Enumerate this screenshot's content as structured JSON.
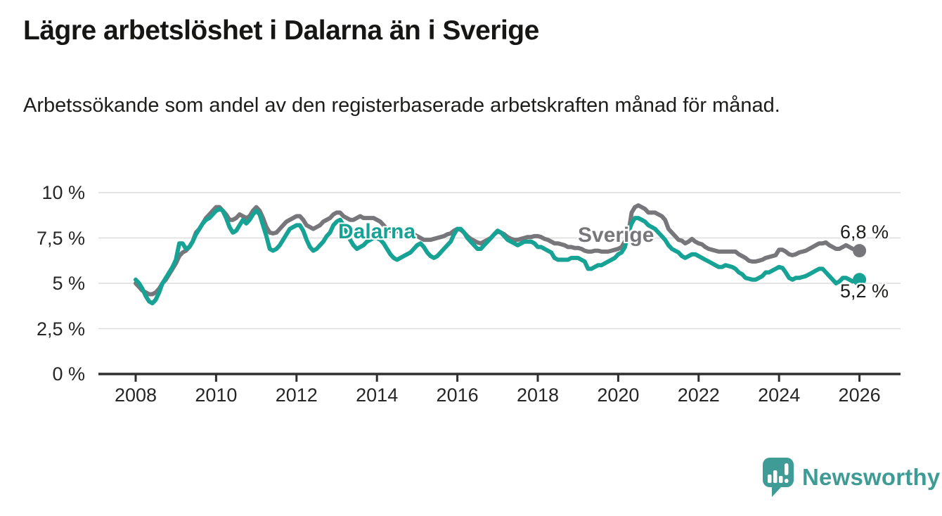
{
  "header": {
    "title": "Lägre arbetslöshet i Dalarna än i Sverige",
    "subtitle": "Arbetssökande som andel av den registerbaserade arbetskraften månad för månad."
  },
  "branding": {
    "logo_text": "Newsworthy",
    "logo_color": "#3f9b95"
  },
  "chart_data": {
    "type": "line",
    "unit": "percent",
    "frequency": "monthly",
    "x_start": "2008-01",
    "x_end": "2026-01",
    "grid": "horizontal",
    "legend": "inline-labels",
    "ylim": [
      0,
      10.5
    ],
    "x_ticks": [
      "2008",
      "2010",
      "2012",
      "2014",
      "2016",
      "2018",
      "2020",
      "2022",
      "2024",
      "2026"
    ],
    "y_ticks": [
      {
        "value": 0,
        "label": "0 %"
      },
      {
        "value": 2.5,
        "label": "2,5 %"
      },
      {
        "value": 5,
        "label": "5 %"
      },
      {
        "value": 7.5,
        "label": "7,5 %"
      },
      {
        "value": 10,
        "label": "10 %"
      }
    ],
    "series": [
      {
        "name": "Sverige",
        "color": "#77777b",
        "end_value": 6.8,
        "end_label": "6,8 %",
        "values": [
          5.0,
          4.8,
          4.6,
          4.5,
          4.4,
          4.4,
          4.5,
          4.7,
          5.0,
          5.2,
          5.5,
          5.8,
          6.1,
          6.5,
          6.7,
          6.8,
          7.0,
          7.3,
          7.8,
          8.0,
          8.3,
          8.6,
          8.8,
          9.0,
          9.2,
          9.2,
          9.0,
          8.8,
          8.5,
          8.5,
          8.6,
          8.8,
          8.7,
          8.6,
          8.7,
          9.0,
          9.2,
          9.0,
          8.6,
          8.1,
          7.8,
          7.75,
          7.8,
          8.0,
          8.2,
          8.4,
          8.5,
          8.6,
          8.7,
          8.7,
          8.5,
          8.2,
          8.1,
          8.0,
          8.1,
          8.2,
          8.4,
          8.5,
          8.6,
          8.8,
          8.9,
          8.9,
          8.7,
          8.6,
          8.5,
          8.5,
          8.6,
          8.7,
          8.6,
          8.6,
          8.6,
          8.6,
          8.5,
          8.4,
          8.2,
          8.0,
          7.9,
          7.9,
          7.9,
          7.8,
          7.7,
          7.6,
          7.6,
          7.7,
          7.6,
          7.5,
          7.4,
          7.4,
          7.4,
          7.45,
          7.5,
          7.55,
          7.6,
          7.7,
          7.75,
          7.9,
          8.0,
          7.95,
          7.8,
          7.6,
          7.45,
          7.35,
          7.25,
          7.2,
          7.3,
          7.4,
          7.5,
          7.7,
          7.85,
          7.8,
          7.7,
          7.55,
          7.45,
          7.4,
          7.4,
          7.45,
          7.5,
          7.55,
          7.55,
          7.6,
          7.6,
          7.55,
          7.45,
          7.4,
          7.3,
          7.2,
          7.2,
          7.15,
          7.1,
          7.0,
          7.0,
          6.95,
          6.95,
          6.9,
          6.8,
          6.75,
          6.75,
          6.8,
          6.8,
          6.75,
          6.75,
          6.75,
          6.8,
          6.85,
          6.9,
          7.0,
          7.3,
          7.7,
          8.9,
          9.2,
          9.3,
          9.2,
          9.1,
          8.9,
          8.9,
          8.9,
          8.8,
          8.7,
          8.5,
          8.0,
          7.8,
          7.6,
          7.4,
          7.35,
          7.2,
          7.3,
          7.45,
          7.3,
          7.2,
          7.15,
          7.0,
          6.9,
          6.85,
          6.8,
          6.75,
          6.75,
          6.75,
          6.75,
          6.75,
          6.75,
          6.6,
          6.5,
          6.4,
          6.25,
          6.2,
          6.2,
          6.25,
          6.3,
          6.4,
          6.45,
          6.5,
          6.55,
          6.85,
          6.85,
          6.75,
          6.6,
          6.55,
          6.6,
          6.7,
          6.75,
          6.8,
          6.9,
          7.0,
          7.1,
          7.2,
          7.2,
          7.25,
          7.1,
          7.0,
          6.9,
          6.9,
          7.0,
          7.1,
          7.0,
          6.9,
          6.85,
          6.8
        ]
      },
      {
        "name": "Dalarna",
        "color": "#16a294",
        "end_value": 5.2,
        "end_label": "5,2 %",
        "values": [
          5.2,
          5.0,
          4.7,
          4.3,
          4.0,
          3.9,
          4.1,
          4.5,
          5.0,
          5.3,
          5.6,
          5.9,
          6.3,
          7.2,
          7.2,
          6.9,
          7.0,
          7.3,
          7.7,
          8.0,
          8.3,
          8.5,
          8.6,
          8.8,
          9.0,
          9.1,
          9.0,
          8.6,
          8.1,
          7.8,
          7.9,
          8.2,
          8.5,
          8.3,
          8.5,
          8.8,
          9.0,
          8.8,
          8.2,
          7.6,
          6.9,
          6.8,
          6.9,
          7.1,
          7.4,
          7.7,
          8.0,
          8.1,
          8.2,
          8.2,
          7.9,
          7.4,
          7.0,
          6.8,
          6.9,
          7.1,
          7.3,
          7.6,
          7.8,
          8.2,
          8.4,
          8.5,
          8.2,
          7.8,
          7.4,
          7.1,
          6.9,
          7.0,
          7.1,
          7.3,
          7.4,
          7.5,
          7.5,
          7.4,
          7.2,
          6.9,
          6.6,
          6.4,
          6.3,
          6.4,
          6.5,
          6.6,
          6.7,
          6.9,
          7.1,
          7.2,
          7.0,
          6.7,
          6.5,
          6.4,
          6.5,
          6.7,
          6.9,
          7.1,
          7.3,
          7.7,
          8.0,
          8.0,
          7.8,
          7.5,
          7.3,
          7.1,
          6.9,
          6.9,
          7.1,
          7.3,
          7.5,
          7.7,
          7.9,
          7.8,
          7.6,
          7.4,
          7.3,
          7.2,
          7.1,
          7.2,
          7.3,
          7.3,
          7.3,
          7.2,
          7.0,
          7.0,
          6.9,
          6.8,
          6.7,
          6.4,
          6.3,
          6.3,
          6.3,
          6.3,
          6.4,
          6.4,
          6.4,
          6.3,
          6.2,
          5.8,
          5.8,
          5.9,
          6.0,
          6.0,
          6.1,
          6.2,
          6.3,
          6.4,
          6.6,
          6.7,
          7.0,
          7.8,
          8.3,
          8.6,
          8.6,
          8.5,
          8.4,
          8.2,
          8.1,
          8.0,
          7.8,
          7.6,
          7.4,
          7.1,
          6.9,
          6.8,
          6.7,
          6.5,
          6.4,
          6.5,
          6.6,
          6.6,
          6.5,
          6.4,
          6.3,
          6.2,
          6.1,
          6.0,
          5.9,
          5.9,
          6.0,
          5.95,
          5.9,
          5.8,
          5.6,
          5.5,
          5.3,
          5.25,
          5.2,
          5.2,
          5.3,
          5.4,
          5.6,
          5.6,
          5.7,
          5.8,
          5.9,
          5.85,
          5.6,
          5.3,
          5.2,
          5.3,
          5.3,
          5.35,
          5.4,
          5.5,
          5.6,
          5.7,
          5.8,
          5.8,
          5.6,
          5.4,
          5.2,
          5.0,
          5.1,
          5.3,
          5.3,
          5.2,
          5.1,
          5.2,
          5.2
        ]
      }
    ]
  }
}
